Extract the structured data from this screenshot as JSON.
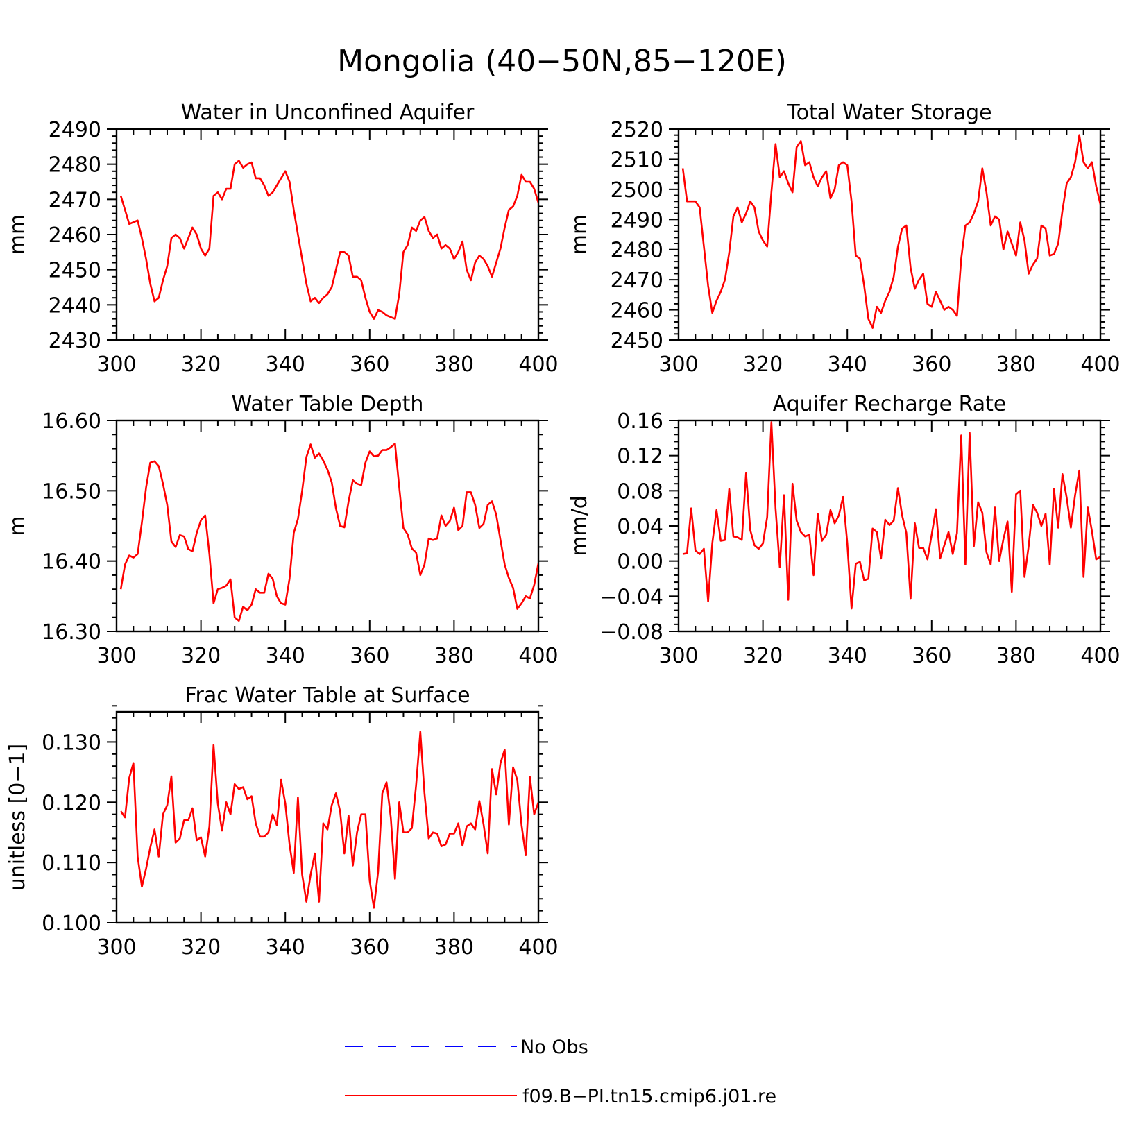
{
  "figure": {
    "title": "Mongolia (40−50N,85−120E)",
    "colors": {
      "model": "#ff0000",
      "obs": "#0000ff",
      "axes": "#000000"
    }
  },
  "legend": {
    "placement": "bottom-center",
    "entries": [
      {
        "label": "No Obs",
        "style": "dashed",
        "color": "#0000ff"
      },
      {
        "label": "f09.B−PI.tn15.cmip6.j01.re",
        "style": "solid",
        "color": "#ff0000"
      }
    ]
  },
  "chart_data": [
    {
      "type": "line",
      "title": "Water in Unconfined Aquifer",
      "ylabel": "mm",
      "xlim": [
        300,
        400
      ],
      "ylim": [
        2430,
        2490
      ],
      "xticks": [
        300,
        320,
        340,
        360,
        380,
        400
      ],
      "yticks": [
        2430,
        2440,
        2450,
        2460,
        2470,
        2480,
        2490
      ],
      "ytick_labels": [
        "2430",
        "2440",
        "2450",
        "2460",
        "2470",
        "2480",
        "2490"
      ],
      "x_start": 301,
      "series": [
        {
          "color": "#ff0000",
          "values": [
            2471,
            2467,
            2463,
            2463.5,
            2464,
            2459,
            2453,
            2446,
            2441,
            2442,
            2447,
            2451,
            2459,
            2460,
            2459,
            2456,
            2459,
            2462,
            2460,
            2456,
            2454,
            2456,
            2471,
            2472,
            2470,
            2473,
            2473,
            2480,
            2481,
            2479,
            2480,
            2480.5,
            2476,
            2476,
            2474,
            2471,
            2472,
            2474,
            2476,
            2478,
            2475,
            2467,
            2460,
            2453,
            2446,
            2441,
            2442,
            2440.5,
            2442,
            2443,
            2445,
            2450,
            2455,
            2455,
            2454,
            2448,
            2448,
            2447,
            2442,
            2438,
            2436,
            2438.5,
            2438,
            2437,
            2436.5,
            2436,
            2443,
            2455,
            2457,
            2462,
            2461,
            2464,
            2465,
            2461,
            2459,
            2460,
            2456,
            2457,
            2456,
            2453,
            2455,
            2458,
            2450,
            2447,
            2452,
            2454,
            2453,
            2451,
            2448,
            2452,
            2456,
            2462,
            2467,
            2468,
            2471,
            2477,
            2475,
            2475,
            2473,
            2469
          ]
        }
      ]
    },
    {
      "type": "line",
      "title": "Total Water Storage",
      "ylabel": "mm",
      "xlim": [
        300,
        400
      ],
      "ylim": [
        2450,
        2520
      ],
      "xticks": [
        300,
        320,
        340,
        360,
        380,
        400
      ],
      "yticks": [
        2450,
        2460,
        2470,
        2480,
        2490,
        2500,
        2510,
        2520
      ],
      "ytick_labels": [
        "2450",
        "2460",
        "2470",
        "2480",
        "2490",
        "2500",
        "2510",
        "2520"
      ],
      "x_start": 301,
      "series": [
        {
          "color": "#ff0000",
          "values": [
            2507,
            2496,
            2496,
            2496,
            2494,
            2481,
            2468,
            2459,
            2463,
            2466,
            2470,
            2479,
            2491,
            2494,
            2489,
            2492,
            2496,
            2494,
            2486,
            2483,
            2481,
            2499,
            2515,
            2504,
            2506,
            2502,
            2499,
            2514,
            2516,
            2508,
            2509,
            2504,
            2501,
            2504,
            2506,
            2497,
            2500,
            2508,
            2509,
            2508,
            2496,
            2478,
            2477,
            2468,
            2457,
            2454,
            2461,
            2459,
            2463,
            2466,
            2471,
            2481,
            2487,
            2488,
            2474,
            2467,
            2470,
            2472,
            2462,
            2461,
            2466,
            2463,
            2460,
            2461,
            2460,
            2458,
            2477,
            2488,
            2489,
            2492,
            2496,
            2507,
            2499,
            2488,
            2491,
            2490,
            2480,
            2486,
            2482,
            2478,
            2489,
            2483,
            2472,
            2475,
            2477,
            2488,
            2487,
            2478,
            2478.5,
            2482,
            2493,
            2502,
            2504,
            2509,
            2518,
            2509,
            2507,
            2509,
            2501,
            2495
          ]
        }
      ]
    },
    {
      "type": "line",
      "title": "Water Table Depth",
      "ylabel": "m",
      "xlim": [
        300,
        400
      ],
      "ylim": [
        16.3,
        16.6
      ],
      "xticks": [
        300,
        320,
        340,
        360,
        380,
        400
      ],
      "yticks": [
        16.3,
        16.4,
        16.5,
        16.6
      ],
      "ytick_labels": [
        "16.30",
        "16.40",
        "16.50",
        "16.60"
      ],
      "x_start": 301,
      "series": [
        {
          "color": "#ff0000",
          "values": [
            16.36,
            16.395,
            16.408,
            16.405,
            16.41,
            16.455,
            16.505,
            16.54,
            16.542,
            16.535,
            16.51,
            16.48,
            16.428,
            16.42,
            16.437,
            16.435,
            16.417,
            16.414,
            16.44,
            16.458,
            16.465,
            16.41,
            16.34,
            16.36,
            16.362,
            16.365,
            16.374,
            16.32,
            16.315,
            16.335,
            16.33,
            16.338,
            16.36,
            16.355,
            16.355,
            16.382,
            16.375,
            16.35,
            16.34,
            16.338,
            16.375,
            16.44,
            16.46,
            16.5,
            16.548,
            16.566,
            16.547,
            16.553,
            16.543,
            16.53,
            16.512,
            16.475,
            16.45,
            16.448,
            16.485,
            16.515,
            16.51,
            16.508,
            16.54,
            16.556,
            16.549,
            16.55,
            16.558,
            16.558,
            16.562,
            16.567,
            16.505,
            16.447,
            16.438,
            16.418,
            16.412,
            16.38,
            16.395,
            16.432,
            16.43,
            16.432,
            16.465,
            16.45,
            16.457,
            16.476,
            16.444,
            16.45,
            16.498,
            16.498,
            16.48,
            16.447,
            16.453,
            16.48,
            16.485,
            16.466,
            16.43,
            16.395,
            16.376,
            16.362,
            16.332,
            16.34,
            16.35,
            16.347,
            16.366,
            16.397
          ]
        }
      ]
    },
    {
      "type": "line",
      "title": "Aquifer Recharge Rate",
      "ylabel": "mm/d",
      "xlim": [
        300,
        400
      ],
      "ylim": [
        -0.08,
        0.16
      ],
      "xticks": [
        300,
        320,
        340,
        360,
        380,
        400
      ],
      "yticks": [
        -0.08,
        -0.04,
        0.0,
        0.04,
        0.08,
        0.12,
        0.16
      ],
      "ytick_labels": [
        "−0.08",
        "−0.04",
        "0.00",
        "0.04",
        "0.08",
        "0.12",
        "0.16"
      ],
      "x_start": 301,
      "series": [
        {
          "color": "#ff0000",
          "values": [
            0.008,
            0.009,
            0.06,
            0.012,
            0.008,
            0.014,
            -0.046,
            0.02,
            0.058,
            0.023,
            0.024,
            0.082,
            0.028,
            0.027,
            0.024,
            0.1,
            0.035,
            0.018,
            0.014,
            0.02,
            0.05,
            0.158,
            0.06,
            -0.007,
            0.075,
            -0.044,
            0.088,
            0.046,
            0.033,
            0.028,
            0.03,
            -0.016,
            0.054,
            0.023,
            0.03,
            0.058,
            0.043,
            0.052,
            0.073,
            0.02,
            -0.054,
            -0.003,
            -0.001,
            -0.022,
            -0.02,
            0.037,
            0.033,
            0.003,
            0.047,
            0.041,
            0.046,
            0.083,
            0.052,
            0.032,
            -0.043,
            0.043,
            0.015,
            0.015,
            0.002,
            0.03,
            0.059,
            0.003,
            0.018,
            0.033,
            0.008,
            0.032,
            0.143,
            -0.004,
            0.146,
            0.017,
            0.067,
            0.055,
            0.01,
            -0.004,
            0.061,
            0.0,
            0.025,
            0.045,
            -0.035,
            0.076,
            0.08,
            -0.018,
            0.017,
            0.064,
            0.055,
            0.04,
            0.054,
            -0.004,
            0.082,
            0.038,
            0.099,
            0.072,
            0.038,
            0.075,
            0.103,
            -0.018,
            0.061,
            0.034,
            0.002,
            0.005
          ]
        }
      ]
    },
    {
      "type": "line",
      "title": "Frac Water Table at Surface",
      "ylabel": "unitless [0−1]",
      "xlim": [
        300,
        400
      ],
      "ylim": [
        0.1,
        0.135
      ],
      "xticks": [
        300,
        320,
        340,
        360,
        380,
        400
      ],
      "yticks": [
        0.1,
        0.11,
        0.12,
        0.13
      ],
      "ytick_labels": [
        "0.100",
        "0.110",
        "0.120",
        "0.130"
      ],
      "x_start": 301,
      "series": [
        {
          "color": "#ff0000",
          "values": [
            0.1185,
            0.1175,
            0.124,
            0.1265,
            0.111,
            0.106,
            0.109,
            0.1125,
            0.1155,
            0.111,
            0.118,
            0.1195,
            0.1243,
            0.1133,
            0.114,
            0.117,
            0.117,
            0.119,
            0.1137,
            0.1142,
            0.111,
            0.116,
            0.1295,
            0.1198,
            0.1153,
            0.12,
            0.118,
            0.123,
            0.1222,
            0.1225,
            0.1205,
            0.121,
            0.1165,
            0.1143,
            0.1143,
            0.115,
            0.118,
            0.1162,
            0.1237,
            0.1198,
            0.113,
            0.1083,
            0.1208,
            0.108,
            0.1035,
            0.108,
            0.1115,
            0.1035,
            0.1165,
            0.1155,
            0.1195,
            0.1215,
            0.1185,
            0.1115,
            0.1178,
            0.1095,
            0.115,
            0.118,
            0.118,
            0.107,
            0.1025,
            0.1085,
            0.1215,
            0.1233,
            0.1175,
            0.1073,
            0.12,
            0.115,
            0.115,
            0.1157,
            0.1228,
            0.1317,
            0.1215,
            0.114,
            0.115,
            0.1148,
            0.1127,
            0.113,
            0.1148,
            0.1148,
            0.1165,
            0.1128,
            0.116,
            0.1165,
            0.1155,
            0.1202,
            0.1163,
            0.1115,
            0.1255,
            0.1213,
            0.1265,
            0.1287,
            0.1163,
            0.1258,
            0.1237,
            0.1162,
            0.1112,
            0.1242,
            0.118,
            0.12
          ]
        }
      ]
    }
  ]
}
